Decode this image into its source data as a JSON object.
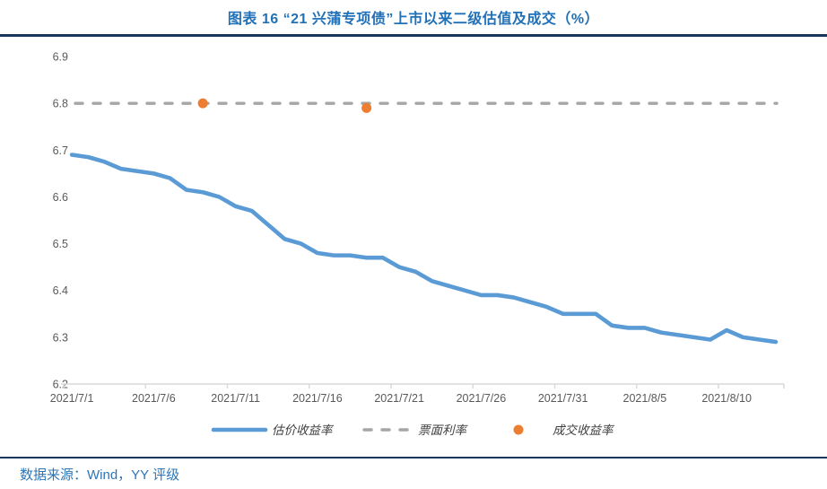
{
  "header": {
    "title": "图表 16 “21 兴蒲专项债”上市以来二级估值及成交（%）"
  },
  "footer": {
    "source": "数据来源：Wind，YY 评级"
  },
  "colors": {
    "title_blue": "#2171B8",
    "rule_navy": "#17365D",
    "source_blue": "#2E75B6",
    "line_blue": "#5B9BD5",
    "dash_gray": "#A6A6A6",
    "dot_orange": "#ED7D31",
    "axis_gray": "#D9D9D9",
    "tick_text": "#595959"
  },
  "chart_data": {
    "type": "line",
    "title": "图表 16 “21 兴蒲专项债”上市以来二级估值及成交（%）",
    "xlabel": "",
    "ylabel": "",
    "ylim": [
      6.2,
      6.9
    ],
    "grid": false,
    "legend_position": "bottom",
    "yticks": [
      "6.2",
      "6.3",
      "6.4",
      "6.5",
      "6.6",
      "6.7",
      "6.8",
      "6.9"
    ],
    "xticks": [
      "2021/7/1",
      "2021/7/6",
      "2021/7/11",
      "2021/7/16",
      "2021/7/21",
      "2021/7/26",
      "2021/7/31",
      "2021/8/5",
      "2021/8/10"
    ],
    "x": [
      "2021/7/1",
      "2021/7/2",
      "2021/7/3",
      "2021/7/4",
      "2021/7/5",
      "2021/7/6",
      "2021/7/7",
      "2021/7/8",
      "2021/7/9",
      "2021/7/10",
      "2021/7/11",
      "2021/7/12",
      "2021/7/13",
      "2021/7/14",
      "2021/7/15",
      "2021/7/16",
      "2021/7/17",
      "2021/7/18",
      "2021/7/19",
      "2021/7/20",
      "2021/7/21",
      "2021/7/22",
      "2021/7/23",
      "2021/7/24",
      "2021/7/25",
      "2021/7/26",
      "2021/7/27",
      "2021/7/28",
      "2021/7/29",
      "2021/7/30",
      "2021/7/31",
      "2021/8/1",
      "2021/8/2",
      "2021/8/3",
      "2021/8/4",
      "2021/8/5",
      "2021/8/6",
      "2021/8/7",
      "2021/8/8",
      "2021/8/9",
      "2021/8/10",
      "2021/8/11",
      "2021/8/12",
      "2021/8/13"
    ],
    "series": [
      {
        "name": "估价收益率",
        "type": "line",
        "color": "#5B9BD5",
        "values": [
          6.69,
          6.685,
          6.675,
          6.66,
          6.655,
          6.65,
          6.64,
          6.615,
          6.61,
          6.6,
          6.58,
          6.57,
          6.54,
          6.51,
          6.5,
          6.48,
          6.475,
          6.475,
          6.47,
          6.47,
          6.45,
          6.44,
          6.42,
          6.41,
          6.4,
          6.39,
          6.39,
          6.385,
          6.375,
          6.365,
          6.35,
          6.35,
          6.35,
          6.325,
          6.32,
          6.32,
          6.31,
          6.305,
          6.3,
          6.295,
          6.315,
          6.3,
          6.295,
          6.29
        ]
      },
      {
        "name": "票面利率",
        "type": "dashed-line",
        "color": "#A6A6A6",
        "value": 6.8
      },
      {
        "name": "成交收益率",
        "type": "scatter",
        "color": "#ED7D31",
        "points": [
          {
            "x": "2021/7/9",
            "y": 6.8
          },
          {
            "x": "2021/7/19",
            "y": 6.79
          }
        ]
      }
    ]
  }
}
